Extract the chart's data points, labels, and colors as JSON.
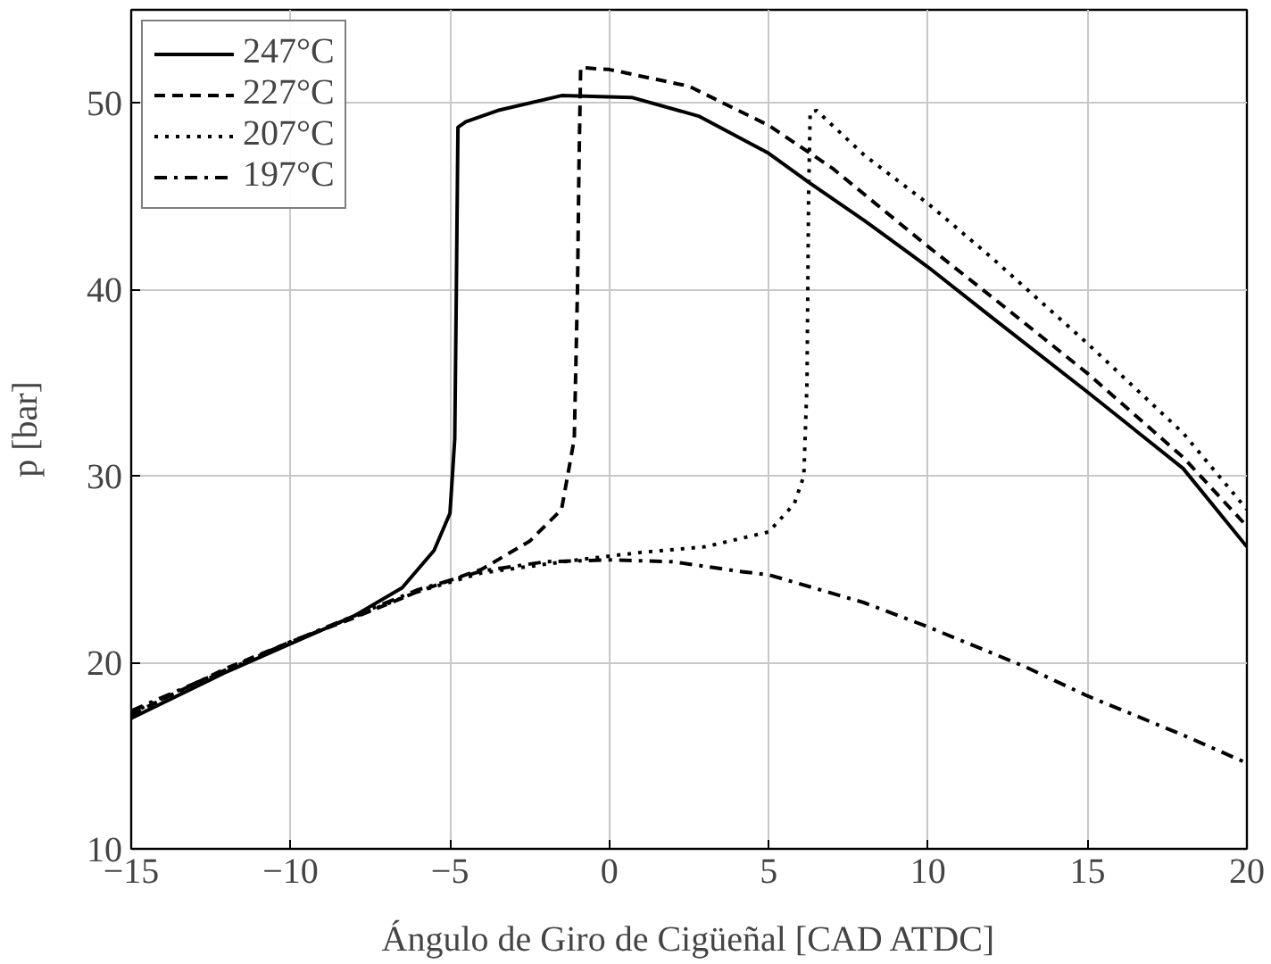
{
  "chart_data": {
    "type": "line",
    "xlabel": "Ángulo de Giro de Cigüeñal [CAD ATDC]",
    "ylabel": "p [bar]",
    "xlim": [
      -15,
      20
    ],
    "ylim": [
      10,
      55
    ],
    "xticks": [
      -15,
      -10,
      -5,
      0,
      5,
      10,
      15,
      20
    ],
    "yticks": [
      10,
      20,
      30,
      40,
      50
    ],
    "grid": true,
    "legend": "top left",
    "marker": "none",
    "series": [
      {
        "name": "247°C",
        "color": "#000000",
        "line_style": "solid",
        "x": [
          -15,
          -12,
          -10,
          -8,
          -6.5,
          -5.5,
          -5,
          -4.85,
          -4.8,
          -4.75,
          -4.5,
          -3.5,
          -1.5,
          0.7,
          2.8,
          5,
          6.3,
          8,
          10,
          12,
          15,
          18,
          20
        ],
        "values": [
          17,
          19.5,
          21,
          22.5,
          24,
          26,
          28,
          32,
          40,
          48.7,
          49,
          49.6,
          50.4,
          50.3,
          49.3,
          47.3,
          45.7,
          43.7,
          41.2,
          38.5,
          34.5,
          30.4,
          26.2
        ]
      },
      {
        "name": "227°C",
        "color": "#000000",
        "line_style": "dashed",
        "x": [
          -15,
          -12,
          -10,
          -8,
          -6,
          -4,
          -2.5,
          -1.5,
          -1.1,
          -1.0,
          -0.95,
          -0.9,
          0,
          2.5,
          5,
          7,
          10,
          12,
          15,
          18,
          20
        ],
        "values": [
          17.2,
          19.7,
          21.1,
          22.4,
          23.8,
          25.0,
          26.5,
          28.2,
          32,
          40,
          47,
          51.9,
          51.8,
          50.9,
          48.8,
          46.5,
          42.3,
          39.6,
          35.5,
          31.0,
          27.3
        ]
      },
      {
        "name": "207°C",
        "color": "#000000",
        "line_style": "dotted",
        "x": [
          -15,
          -10,
          -6,
          -4,
          -1,
          1,
          3,
          5,
          5.8,
          6.1,
          6.2,
          6.25,
          6.3,
          6.5,
          8,
          10,
          12,
          15,
          18,
          20
        ],
        "values": [
          17.3,
          21.1,
          23.8,
          24.8,
          25.5,
          25.9,
          26.2,
          27.0,
          28.5,
          30,
          35,
          45,
          49.5,
          49.6,
          47.2,
          44.6,
          41.7,
          37.1,
          32.3,
          28.2
        ]
      },
      {
        "name": "197°C",
        "color": "#000000",
        "line_style": "dashdot",
        "x": [
          -15,
          -10,
          -6,
          -4,
          -2,
          0,
          2,
          4,
          5,
          8,
          10,
          13,
          15,
          18,
          20
        ],
        "values": [
          17.4,
          21.1,
          23.9,
          24.9,
          25.4,
          25.5,
          25.4,
          24.9,
          24.7,
          23.2,
          21.9,
          19.8,
          18.2,
          16.1,
          14.6
        ]
      }
    ]
  }
}
